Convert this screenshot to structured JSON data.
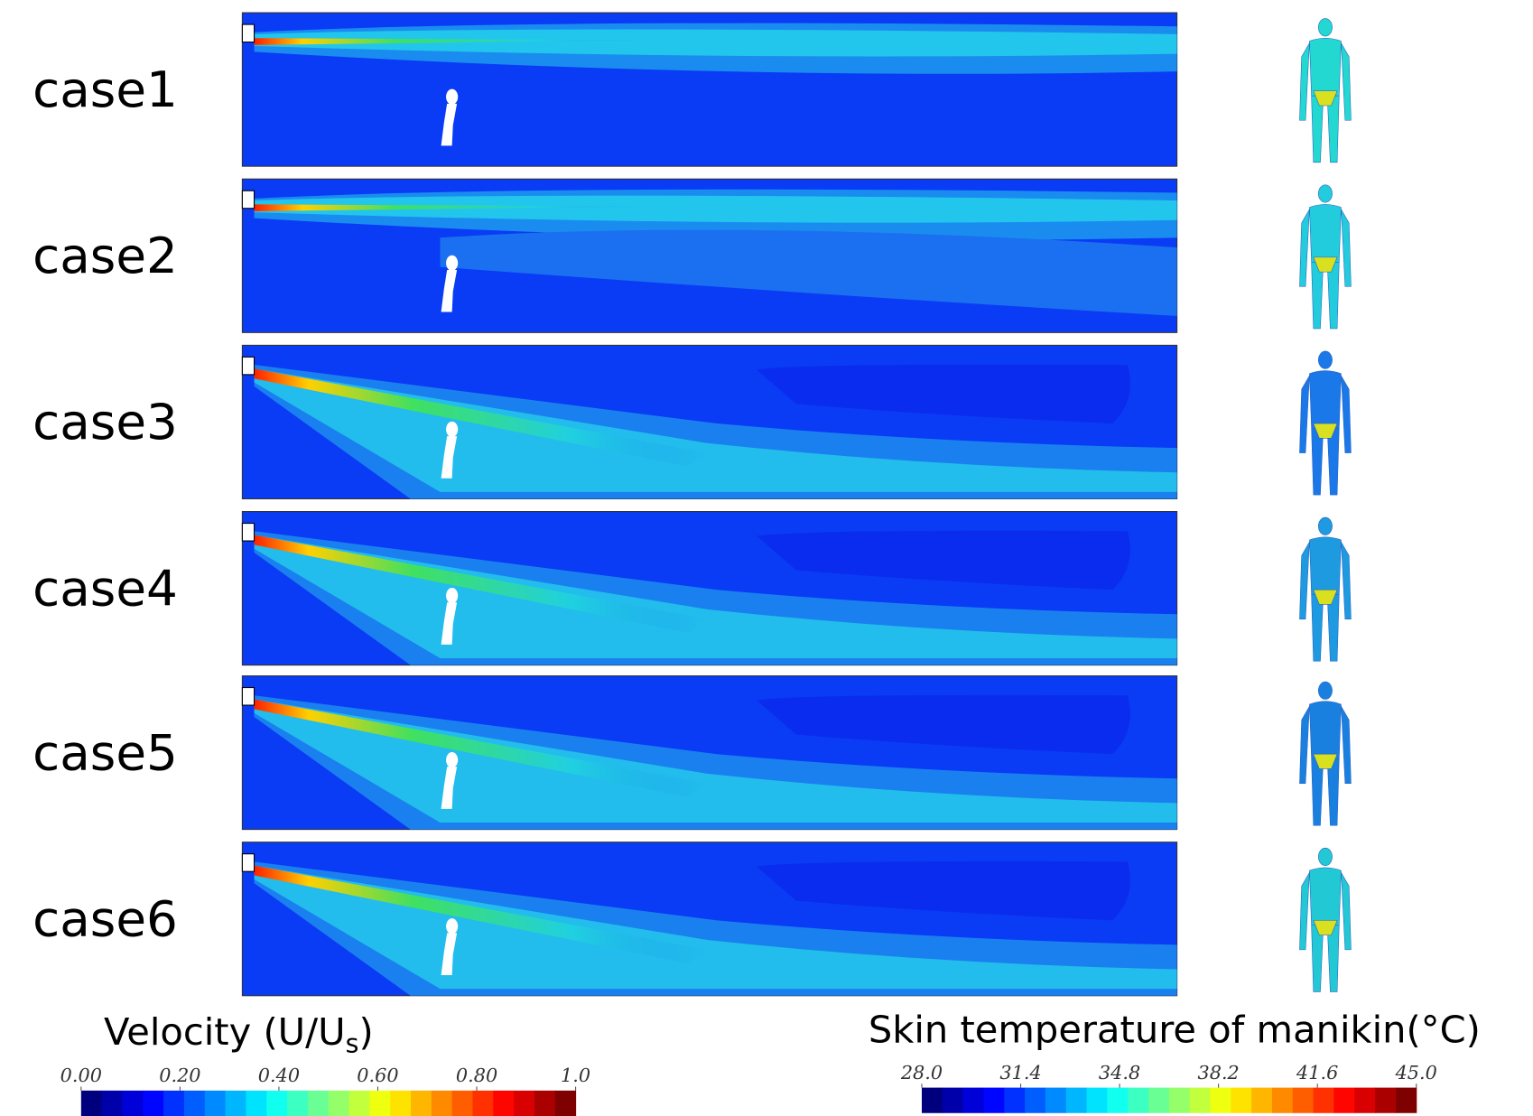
{
  "cases": [
    {
      "label": "case1"
    },
    {
      "label": "case2"
    },
    {
      "label": "case3"
    },
    {
      "label": "case4"
    },
    {
      "label": "case5"
    },
    {
      "label": "case6"
    }
  ],
  "velocity_legend": {
    "title": [
      "Velocity (U/U",
      "s",
      ")"
    ],
    "range": [
      0,
      1
    ],
    "ticks": [
      {
        "value": 0,
        "label": "0.00"
      },
      {
        "value": 0.2,
        "label": "0.20"
      },
      {
        "value": 0.4,
        "label": "0.40"
      },
      {
        "value": 0.6,
        "label": "0.60"
      },
      {
        "value": 0.8,
        "label": "0.80"
      },
      {
        "value": 1,
        "label": "1.0"
      }
    ]
  },
  "temperature_legend": {
    "title": "Skin temperature of manikin(°C)",
    "range": [
      28,
      45
    ],
    "ticks": [
      {
        "value": 28,
        "label": "28.0"
      },
      {
        "value": 31.4,
        "label": "31.4"
      },
      {
        "value": 34.8,
        "label": "34.8"
      },
      {
        "value": 38.2,
        "label": "38.2"
      },
      {
        "value": 41.6,
        "label": "41.6"
      },
      {
        "value": 45,
        "label": "45.0"
      }
    ]
  }
}
